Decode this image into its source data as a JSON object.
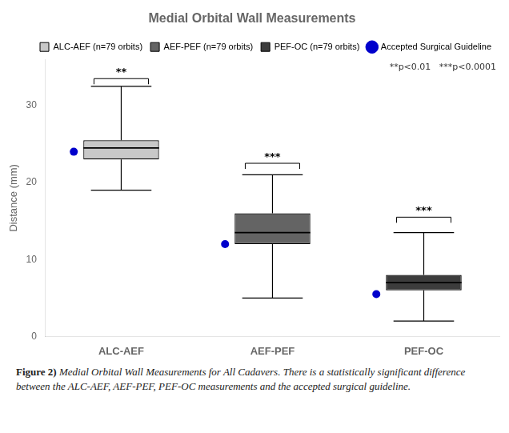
{
  "chart_data": {
    "type": "box",
    "title": "Medial Orbital Wall Measurements",
    "y_label": "Distance (mm)",
    "categories": [
      "ALC-AEF",
      "AEF-PEF",
      "PEF-OC"
    ],
    "boxes": [
      {
        "name": "ALC-AEF (n=79 orbits)",
        "color": "#c8c8c8",
        "whisker_low": 19.0,
        "q1": 23.0,
        "median": 24.5,
        "q3": 25.5,
        "whisker_high": 32.5
      },
      {
        "name": "AEF-PEF (n=79 orbits)",
        "color": "#646464",
        "whisker_low": 5.0,
        "q1": 12.0,
        "median": 13.5,
        "q3": 16.0,
        "whisker_high": 21.0
      },
      {
        "name": "PEF-OC (n=79 orbits)",
        "color": "#3c3c3c",
        "whisker_low": 2.0,
        "q1": 6.0,
        "median": 7.0,
        "q3": 8.0,
        "whisker_high": 13.5
      }
    ],
    "guideline": {
      "name": "Accepted Surgical Guideline",
      "color": "#0000cc",
      "marker": "o",
      "values": [
        24.0,
        12.0,
        5.5
      ]
    },
    "significance": [
      {
        "category": "ALC-AEF",
        "y": 33.5,
        "label": "**"
      },
      {
        "category": "AEF-PEF",
        "y": 22.5,
        "label": "***"
      },
      {
        "category": "PEF-OC",
        "y": 15.5,
        "label": "***"
      }
    ],
    "note": "**p<0.01   ***p<0.0001",
    "caption_bold": "Figure 2)",
    "caption": "Medial Orbital Wall Measurements for All Cadavers. There is a statistically significant difference between the ALC-AEF, AEF-PEF, PEF-OC measurements and the accepted surgical guideline.",
    "ylim": [
      0,
      36
    ],
    "yticks": [
      0,
      10,
      20,
      30
    ],
    "grid": false,
    "legend": "upper right"
  }
}
